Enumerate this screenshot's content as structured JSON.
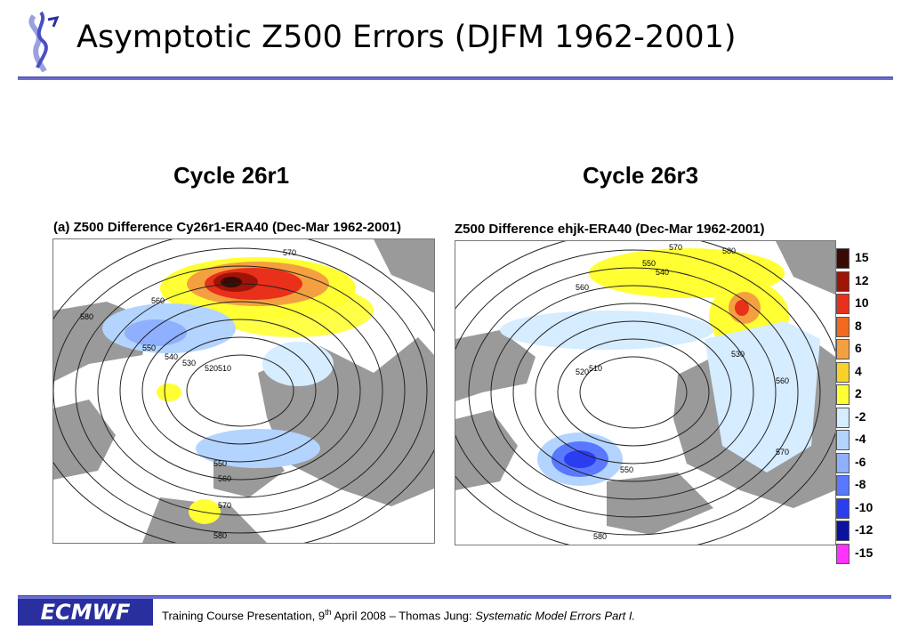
{
  "slide": {
    "title": "Asymptotic Z500 Errors (DJFM 1962-2001)"
  },
  "panels": [
    {
      "subtitle": "Cycle 26r1",
      "title": "(a) Z500 Difference Cy26r1-ERA40 (Dec-Mar 1962-2001)",
      "contour_labels": [
        "580",
        "570",
        "560",
        "550",
        "540",
        "530",
        "520",
        "510",
        "550",
        "560",
        "570",
        "580"
      ]
    },
    {
      "subtitle": "Cycle 26r3",
      "title": "Z500 Difference ehjk-ERA40 (Dec-Mar 1962-2001)",
      "contour_labels": [
        "570",
        "580",
        "560",
        "550",
        "540",
        "530",
        "520",
        "510",
        "550",
        "560",
        "570",
        "580"
      ]
    }
  ],
  "colorbar": {
    "levels": [
      "15",
      "12",
      "10",
      "8",
      "6",
      "4",
      "2",
      "-2",
      "-4",
      "-6",
      "-8",
      "-10",
      "-12",
      "-15"
    ],
    "colors": [
      "#3a0a05",
      "#a01408",
      "#e8301a",
      "#f26a20",
      "#f5a040",
      "#f8d22a",
      "#ffff33",
      "#d6ecff",
      "#b3d4ff",
      "#8fb0ff",
      "#5a78ff",
      "#2a3ef0",
      "#0a12a0",
      "#ff33ff"
    ]
  },
  "footer": {
    "org": "ECMWF",
    "text_before": "Training Course Presentation, 9",
    "sup": "th",
    "text_middle": " April 2008 – Thomas Jung: ",
    "italic": "Systematic Model Errors Part I."
  }
}
